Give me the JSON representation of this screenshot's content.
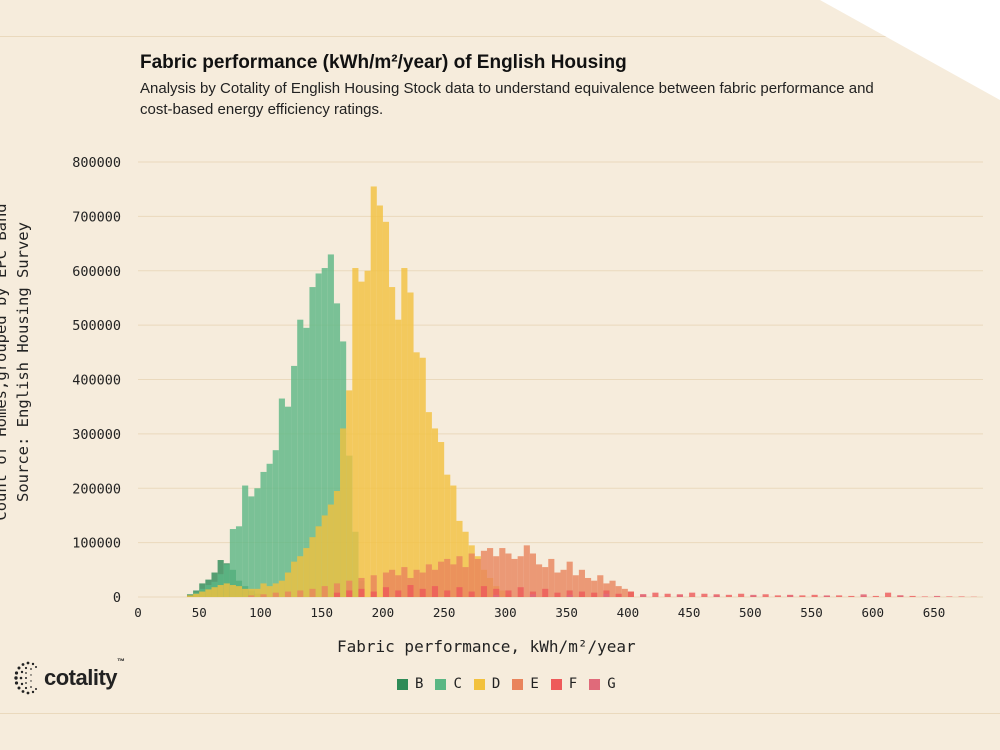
{
  "title": "Fabric performance (kWh/m²/year) of English Housing",
  "subtitle": "Analysis by Cotality of English Housing Stock data to understand equivalence between fabric performance and cost-based energy efficiency ratings.",
  "logo_text": "cotality",
  "logo_tm": "™",
  "chart_data": {
    "type": "bar",
    "xlabel": "Fabric performance, kWh/m²/year",
    "ylabel": [
      "Count of Homes,grouped by EPC Band",
      "Source: English Housing Survey"
    ],
    "xlim": [
      0,
      690
    ],
    "ylim": [
      0,
      800000
    ],
    "x_ticks": [
      0,
      50,
      100,
      150,
      200,
      250,
      300,
      350,
      400,
      450,
      500,
      550,
      600,
      650
    ],
    "y_ticks": [
      0,
      100000,
      200000,
      300000,
      400000,
      500000,
      600000,
      700000,
      800000
    ],
    "y_tick_labels": [
      "0",
      "100000",
      "200000",
      "300000",
      "400000",
      "500000",
      "600000",
      "700000",
      "800000"
    ],
    "bin_width": 5,
    "grid": "horizontal",
    "legend_position": "bottom",
    "series": [
      {
        "name": "B",
        "color": "#2e8b57",
        "x": [
          40,
          45,
          50,
          55,
          60,
          65,
          70,
          75,
          80,
          85,
          90,
          95,
          100
        ],
        "values": [
          5000,
          12000,
          25000,
          32000,
          45000,
          68000,
          62000,
          50000,
          30000,
          20000,
          12000,
          6000,
          3000
        ]
      },
      {
        "name": "C",
        "color": "#5bb784",
        "x": [
          45,
          50,
          55,
          60,
          65,
          70,
          75,
          80,
          85,
          90,
          95,
          100,
          105,
          110,
          115,
          120,
          125,
          130,
          135,
          140,
          145,
          150,
          155,
          160,
          165,
          170,
          175,
          180
        ],
        "values": [
          8000,
          15000,
          22000,
          28000,
          42000,
          60000,
          125000,
          130000,
          205000,
          185000,
          200000,
          230000,
          245000,
          270000,
          365000,
          350000,
          425000,
          510000,
          495000,
          570000,
          595000,
          605000,
          630000,
          540000,
          470000,
          260000,
          120000,
          30000
        ]
      },
      {
        "name": "D",
        "color": "#f2c13d",
        "x": [
          40,
          45,
          50,
          55,
          60,
          65,
          70,
          75,
          80,
          85,
          90,
          95,
          100,
          105,
          110,
          115,
          120,
          125,
          130,
          135,
          140,
          145,
          150,
          155,
          160,
          165,
          170,
          175,
          180,
          185,
          190,
          195,
          200,
          205,
          210,
          215,
          220,
          225,
          230,
          235,
          240,
          245,
          250,
          255,
          260,
          265,
          270,
          275,
          280,
          285,
          290,
          295,
          300
        ],
        "values": [
          3000,
          6000,
          10000,
          14000,
          18000,
          22000,
          25000,
          22000,
          20000,
          15000,
          15000,
          15000,
          25000,
          20000,
          25000,
          30000,
          45000,
          65000,
          75000,
          90000,
          110000,
          130000,
          150000,
          170000,
          195000,
          310000,
          380000,
          605000,
          580000,
          600000,
          755000,
          720000,
          690000,
          570000,
          510000,
          605000,
          560000,
          450000,
          440000,
          340000,
          310000,
          285000,
          225000,
          205000,
          140000,
          120000,
          95000,
          75000,
          50000,
          35000,
          20000,
          12000,
          5000
        ]
      },
      {
        "name": "E",
        "color": "#e9845c",
        "x": [
          90,
          100,
          110,
          120,
          130,
          140,
          150,
          160,
          170,
          180,
          190,
          200,
          205,
          210,
          215,
          220,
          225,
          230,
          235,
          240,
          245,
          250,
          255,
          260,
          265,
          270,
          275,
          280,
          285,
          290,
          295,
          300,
          305,
          310,
          315,
          320,
          325,
          330,
          335,
          340,
          345,
          350,
          355,
          360,
          365,
          370,
          375,
          380,
          385,
          390,
          395,
          400
        ],
        "values": [
          3000,
          5000,
          8000,
          10000,
          12000,
          15000,
          20000,
          25000,
          30000,
          35000,
          40000,
          45000,
          50000,
          40000,
          55000,
          35000,
          50000,
          45000,
          60000,
          50000,
          65000,
          70000,
          60000,
          75000,
          55000,
          80000,
          70000,
          85000,
          90000,
          75000,
          90000,
          80000,
          70000,
          75000,
          95000,
          80000,
          60000,
          55000,
          70000,
          45000,
          50000,
          65000,
          40000,
          50000,
          35000,
          30000,
          40000,
          25000,
          30000,
          20000,
          15000,
          10000
        ]
      },
      {
        "name": "F",
        "color": "#ee5a5a",
        "x": [
          160,
          170,
          180,
          190,
          200,
          210,
          220,
          230,
          240,
          250,
          260,
          270,
          280,
          290,
          300,
          310,
          320,
          330,
          340,
          350,
          360,
          370,
          380,
          390,
          400,
          410,
          420,
          430,
          440,
          450,
          460,
          470,
          480,
          490,
          500,
          510,
          520,
          530,
          540,
          550,
          560,
          570,
          580,
          590,
          600,
          610,
          620,
          630,
          640,
          650,
          660,
          670,
          680
        ],
        "values": [
          8000,
          12000,
          15000,
          10000,
          18000,
          12000,
          22000,
          15000,
          20000,
          12000,
          18000,
          10000,
          20000,
          15000,
          12000,
          18000,
          10000,
          15000,
          8000,
          12000,
          10000,
          8000,
          12000,
          6000,
          10000,
          5000,
          8000,
          6000,
          5000,
          8000,
          6000,
          5000,
          4000,
          6000,
          3000,
          5000,
          3000,
          4000,
          3000,
          4000,
          2000,
          3000,
          2000,
          3000,
          2000,
          8000,
          3000,
          2000,
          1000,
          1000,
          1000,
          1000,
          500
        ]
      },
      {
        "name": "G",
        "color": "#e06a7a",
        "x": [
          290,
          320,
          350,
          380,
          410,
          440,
          470,
          500,
          530,
          560,
          590,
          620,
          650
        ],
        "values": [
          4000,
          5000,
          4000,
          6000,
          5000,
          4000,
          3000,
          4000,
          3000,
          3000,
          5000,
          3000,
          2000
        ]
      }
    ]
  }
}
